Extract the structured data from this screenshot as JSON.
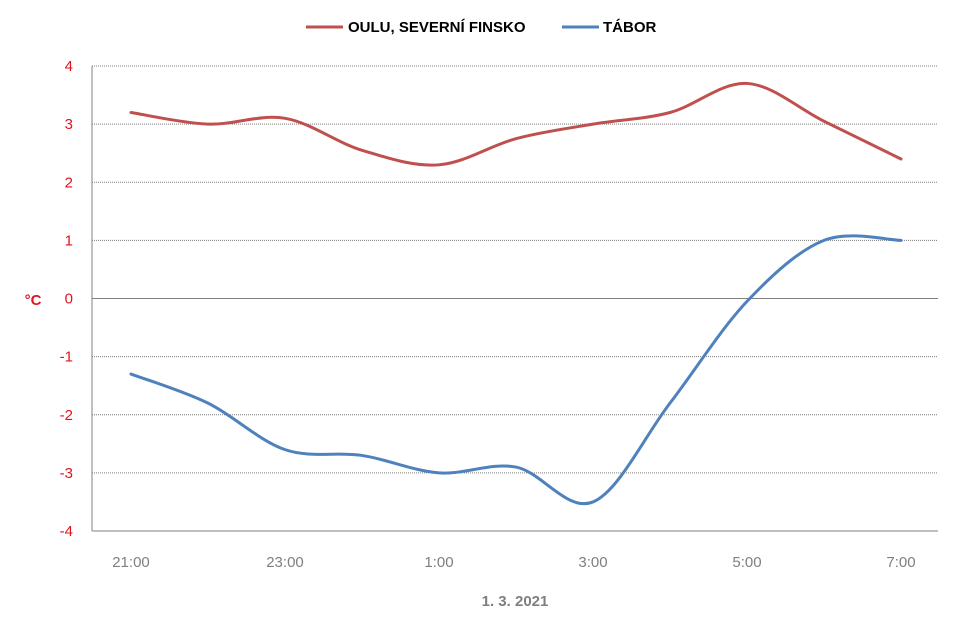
{
  "chart_data": {
    "type": "line",
    "categories": [
      "21:00",
      "22:00",
      "23:00",
      "0:00",
      "1:00",
      "2:00",
      "3:00",
      "4:00",
      "5:00",
      "6:00",
      "7:00"
    ],
    "x_tick_labels": [
      "21:00",
      "23:00",
      "1:00",
      "3:00",
      "5:00",
      "7:00"
    ],
    "series": [
      {
        "name": "OULU, SEVERNÍ FINSKO",
        "color": "#c0504d",
        "values": [
          3.2,
          3.0,
          3.1,
          2.55,
          2.3,
          2.75,
          3.0,
          3.2,
          3.7,
          3.05,
          2.4
        ]
      },
      {
        "name": "TÁBOR",
        "color": "#4f81bd",
        "values": [
          -1.3,
          -1.8,
          -2.6,
          -2.7,
          -3.0,
          -2.9,
          -3.5,
          -1.8,
          -0.05,
          1.0,
          1.0
        ]
      }
    ],
    "ylabel": "°C",
    "xlabel": "1. 3. 2021",
    "ylim": [
      -4,
      4
    ],
    "y_ticks": [
      "-4",
      "-3",
      "-2",
      "-1",
      "0",
      "1",
      "2",
      "3",
      "4"
    ],
    "grid": true,
    "legend_position": "top-center",
    "colors": {
      "tick_y": "#e0141e",
      "tick_x": "#7f7f7f",
      "grid": "#7f7f7f",
      "zero_line": "#808080"
    }
  }
}
